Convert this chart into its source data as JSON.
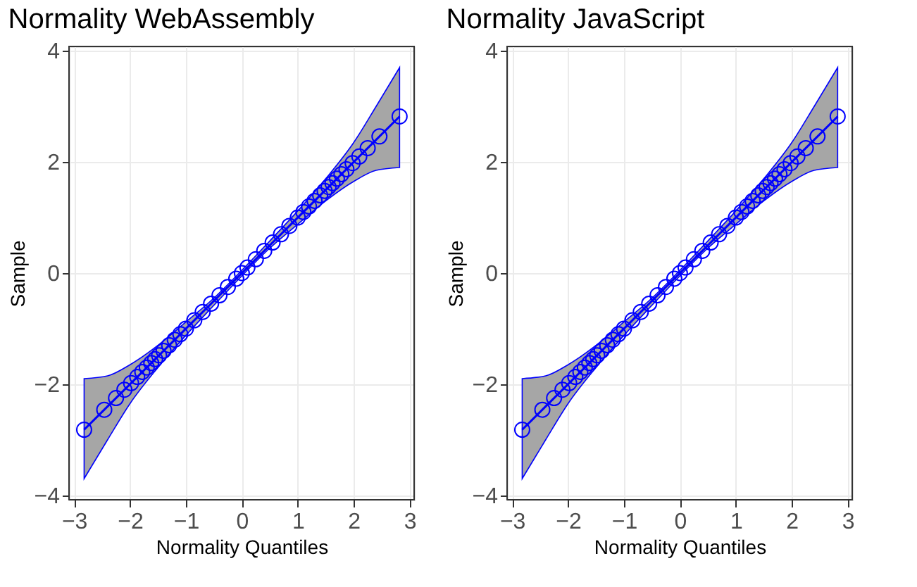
{
  "chart_data": [
    {
      "type": "scatter",
      "title": "Normality WebAssembly",
      "xlabel": "Normality Quantiles",
      "ylabel": "Sample",
      "xlim": [
        -3.09,
        3.08
      ],
      "ylim": [
        -4.08,
        4.08
      ],
      "xticks": [
        {
          "value": -3,
          "label": "−3"
        },
        {
          "value": -2,
          "label": "−2"
        },
        {
          "value": -1,
          "label": "−1"
        },
        0,
        1,
        2,
        3
      ],
      "yticks": [
        {
          "value": -4,
          "label": "−4"
        },
        {
          "value": -2,
          "label": "−2"
        },
        0,
        2,
        4
      ],
      "grid": true,
      "series": [
        {
          "type": "line",
          "color": "#0000ff",
          "x": [
            -2.82,
            -2.4,
            -2,
            -1.5,
            -1,
            -0.5,
            0,
            0.5,
            1,
            1.5,
            2,
            2.4,
            2.82
          ],
          "values": [
            -2.82,
            -2.4,
            -2,
            -1.5,
            -1,
            -0.5,
            0,
            0.5,
            1,
            1.5,
            2,
            2.4,
            2.82
          ],
          "lower": [
            -3.7,
            -3.0,
            -2.35,
            -1.7,
            -1.12,
            -0.58,
            -0.05,
            0.45,
            0.88,
            1.3,
            1.65,
            1.85,
            1.9
          ],
          "upper": [
            -1.9,
            -1.85,
            -1.65,
            -1.3,
            -0.88,
            -0.45,
            0.05,
            0.58,
            1.12,
            1.7,
            2.35,
            3.0,
            3.7
          ]
        },
        {
          "color": "#0000ff",
          "marker": "circle",
          "x": [
            -2.82,
            -2.46,
            -2.25,
            -2.1,
            -1.98,
            -1.87,
            -1.78,
            -1.7,
            -1.62,
            -1.55,
            -1.48,
            -1.4,
            -1.3,
            -1.2,
            -1.1,
            -1.0,
            -0.85,
            -0.7,
            -0.55,
            -0.4,
            -0.25,
            -0.1,
            0,
            0.1,
            0.25,
            0.4,
            0.55,
            0.7,
            0.85,
            1.0,
            1.1,
            1.2,
            1.3,
            1.4,
            1.48,
            1.55,
            1.62,
            1.7,
            1.78,
            1.87,
            1.98,
            2.1,
            2.25,
            2.46,
            2.82
          ],
          "values": [
            -2.82,
            -2.46,
            -2.25,
            -2.1,
            -1.98,
            -1.87,
            -1.78,
            -1.7,
            -1.62,
            -1.55,
            -1.48,
            -1.4,
            -1.3,
            -1.2,
            -1.1,
            -1.0,
            -0.85,
            -0.7,
            -0.55,
            -0.4,
            -0.25,
            -0.1,
            0,
            0.1,
            0.25,
            0.4,
            0.55,
            0.7,
            0.85,
            1.0,
            1.1,
            1.2,
            1.3,
            1.4,
            1.48,
            1.55,
            1.62,
            1.7,
            1.78,
            1.87,
            1.98,
            2.1,
            2.25,
            2.46,
            2.82
          ]
        }
      ]
    },
    {
      "type": "scatter",
      "title": "Normality JavaScript",
      "xlabel": "Normality Quantiles",
      "ylabel": "Sample",
      "xlim": [
        -3.09,
        3.08
      ],
      "ylim": [
        -4.08,
        4.08
      ],
      "xticks": [
        {
          "value": -3,
          "label": "−3"
        },
        {
          "value": -2,
          "label": "−2"
        },
        {
          "value": -1,
          "label": "−1"
        },
        0,
        1,
        2,
        3
      ],
      "yticks": [
        {
          "value": -4,
          "label": "−4"
        },
        {
          "value": -2,
          "label": "−2"
        },
        0,
        2,
        4
      ],
      "grid": true,
      "series": [
        {
          "type": "line",
          "color": "#0000ff",
          "x": [
            -2.82,
            -2.4,
            -2,
            -1.5,
            -1,
            -0.5,
            0,
            0.5,
            1,
            1.5,
            2,
            2.4,
            2.82
          ],
          "values": [
            -2.82,
            -2.4,
            -2,
            -1.5,
            -1,
            -0.5,
            0,
            0.5,
            1,
            1.5,
            2,
            2.4,
            2.82
          ],
          "lower": [
            -3.7,
            -3.0,
            -2.35,
            -1.7,
            -1.12,
            -0.58,
            -0.05,
            0.45,
            0.88,
            1.3,
            1.65,
            1.85,
            1.9
          ],
          "upper": [
            -1.9,
            -1.85,
            -1.65,
            -1.3,
            -0.88,
            -0.45,
            0.05,
            0.58,
            1.12,
            1.7,
            2.35,
            3.0,
            3.7
          ]
        },
        {
          "color": "#0000ff",
          "marker": "circle",
          "x": [
            -2.82,
            -2.46,
            -2.25,
            -2.1,
            -1.98,
            -1.87,
            -1.78,
            -1.7,
            -1.62,
            -1.55,
            -1.48,
            -1.4,
            -1.3,
            -1.2,
            -1.1,
            -1.0,
            -0.85,
            -0.7,
            -0.55,
            -0.4,
            -0.25,
            -0.1,
            0,
            0.1,
            0.25,
            0.4,
            0.55,
            0.7,
            0.85,
            1.0,
            1.1,
            1.2,
            1.3,
            1.4,
            1.48,
            1.55,
            1.62,
            1.7,
            1.78,
            1.87,
            1.98,
            2.1,
            2.25,
            2.46,
            2.82
          ],
          "values": [
            -2.82,
            -2.46,
            -2.25,
            -2.1,
            -1.98,
            -1.87,
            -1.78,
            -1.7,
            -1.62,
            -1.55,
            -1.48,
            -1.4,
            -1.3,
            -1.2,
            -1.1,
            -1.0,
            -0.85,
            -0.7,
            -0.55,
            -0.4,
            -0.25,
            -0.1,
            0,
            0.1,
            0.25,
            0.4,
            0.55,
            0.7,
            0.85,
            1.0,
            1.1,
            1.2,
            1.3,
            1.4,
            1.48,
            1.55,
            1.62,
            1.7,
            1.78,
            1.87,
            1.98,
            2.1,
            2.25,
            2.46,
            2.82
          ]
        }
      ]
    }
  ]
}
